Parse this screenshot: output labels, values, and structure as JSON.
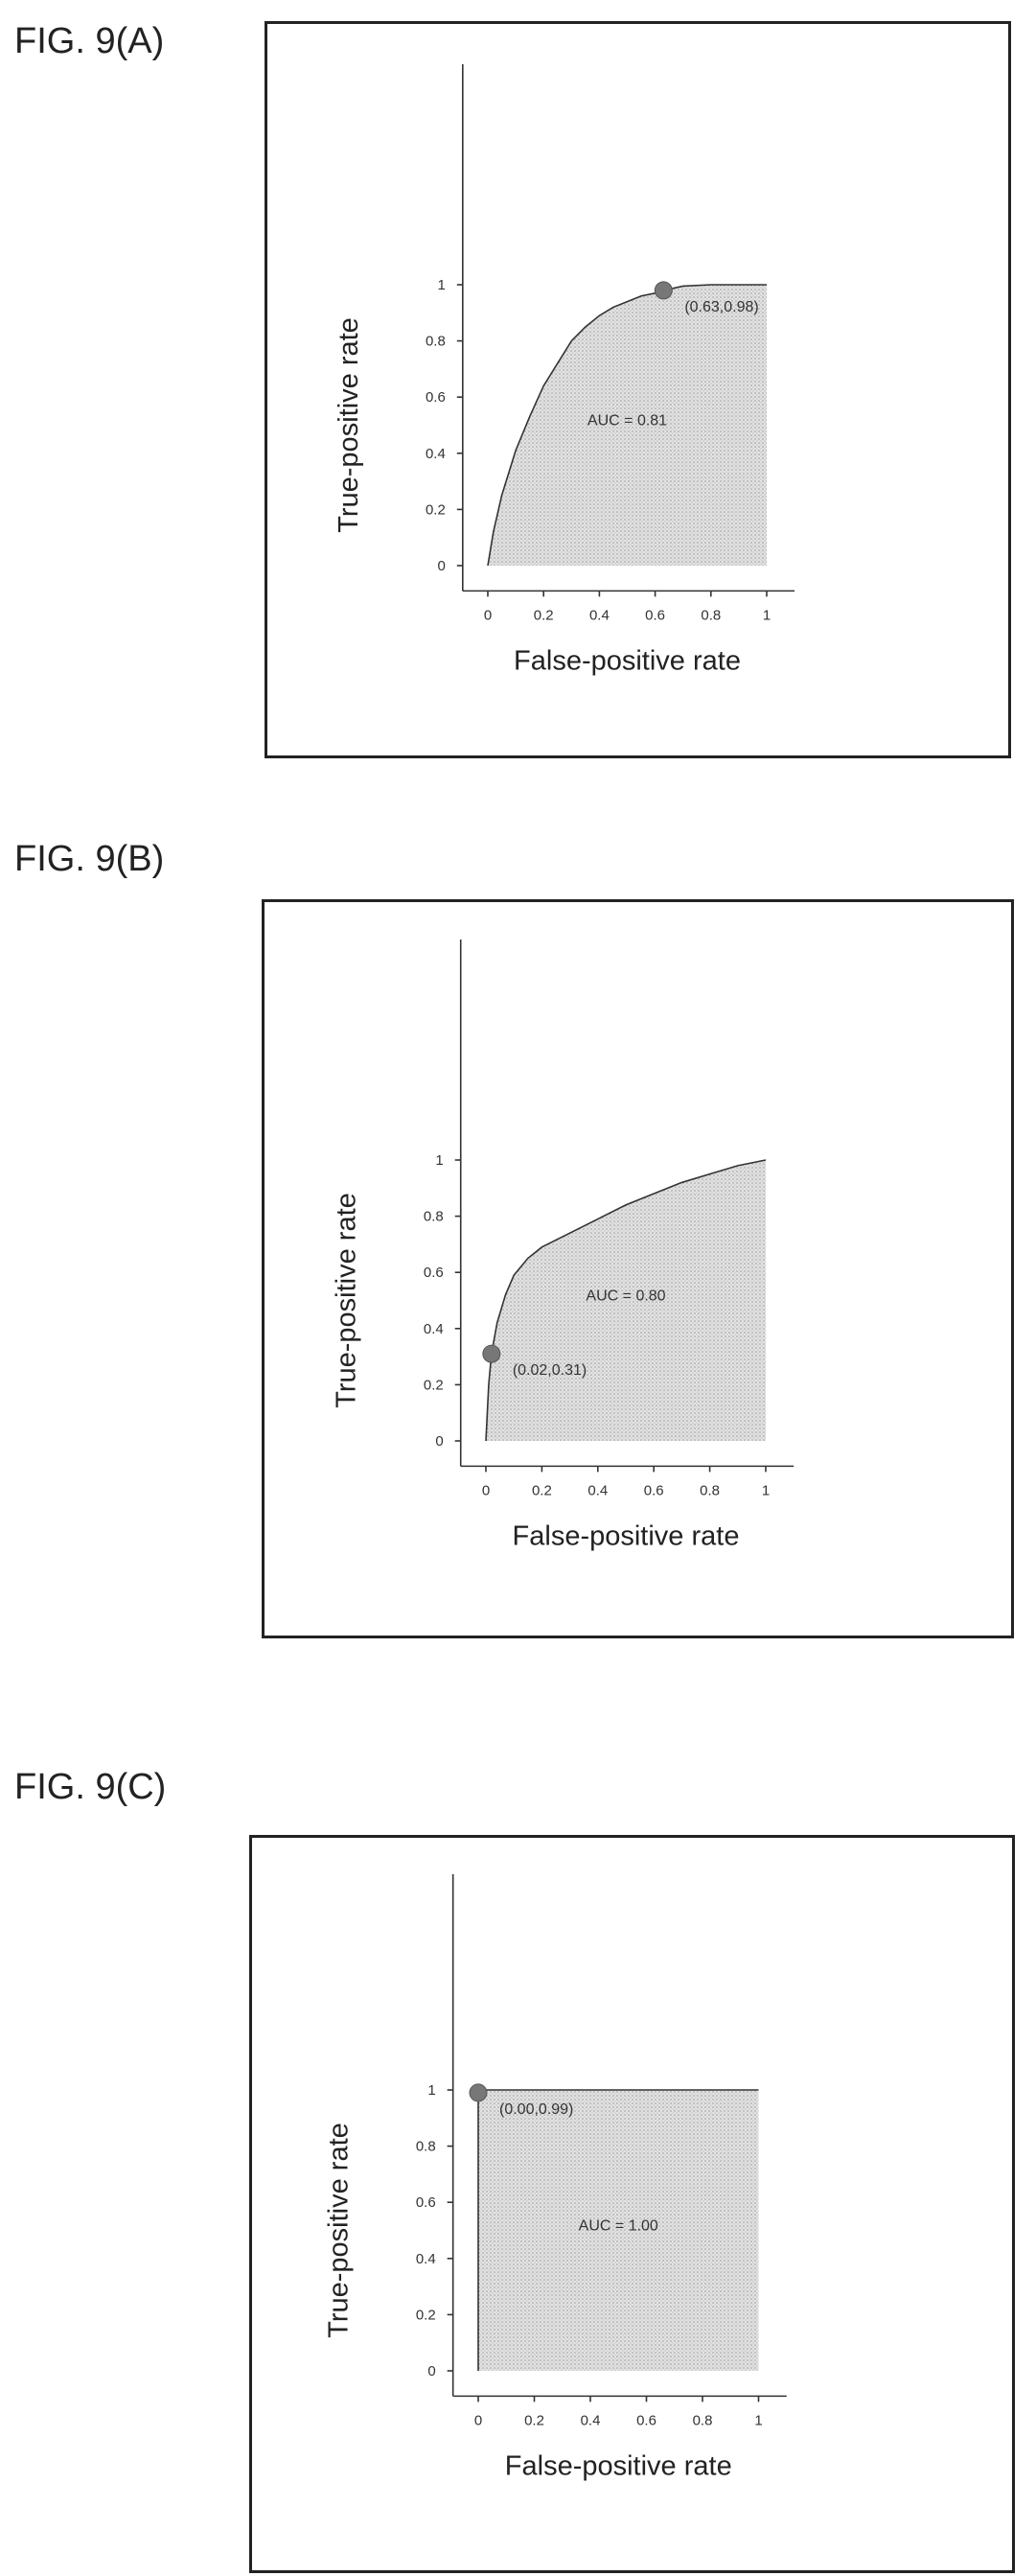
{
  "figures": {
    "a": {
      "label": "FIG. 9(A)"
    },
    "b": {
      "label": "FIG. 9(B)"
    },
    "c": {
      "label": "FIG. 9(C)"
    }
  },
  "chart_data": [
    {
      "type": "area",
      "xlabel": "False-positive rate",
      "ylabel": "True-positive rate",
      "xlim": [
        0,
        1
      ],
      "ylim": [
        0,
        1
      ],
      "x_ticks": [
        "0",
        "0.2",
        "0.4",
        "0.6",
        "0.8",
        "1"
      ],
      "y_ticks": [
        "0",
        "0.2",
        "0.4",
        "0.6",
        "0.8",
        "1"
      ],
      "x": [
        0,
        0.02,
        0.05,
        0.1,
        0.15,
        0.2,
        0.25,
        0.3,
        0.35,
        0.4,
        0.45,
        0.5,
        0.55,
        0.6,
        0.63,
        0.7,
        0.8,
        0.9,
        1.0
      ],
      "y": [
        0,
        0.12,
        0.25,
        0.41,
        0.53,
        0.64,
        0.72,
        0.8,
        0.85,
        0.89,
        0.92,
        0.94,
        0.96,
        0.97,
        0.98,
        0.995,
        1.0,
        1.0,
        1.0
      ],
      "annotation": "AUC = 0.81",
      "highlight_point": {
        "x": 0.63,
        "y": 0.98,
        "label": "(0.63,0.98)"
      },
      "grid": false
    },
    {
      "type": "area",
      "xlabel": "False-positive rate",
      "ylabel": "True-positive rate",
      "xlim": [
        0,
        1
      ],
      "ylim": [
        0,
        1
      ],
      "x_ticks": [
        "0",
        "0.2",
        "0.4",
        "0.6",
        "0.8",
        "1"
      ],
      "y_ticks": [
        "0",
        "0.2",
        "0.4",
        "0.6",
        "0.8",
        "1"
      ],
      "x": [
        0,
        0.005,
        0.01,
        0.02,
        0.04,
        0.07,
        0.1,
        0.15,
        0.2,
        0.3,
        0.4,
        0.5,
        0.6,
        0.7,
        0.8,
        0.9,
        1.0
      ],
      "y": [
        0,
        0.1,
        0.2,
        0.31,
        0.42,
        0.52,
        0.59,
        0.65,
        0.69,
        0.74,
        0.79,
        0.84,
        0.88,
        0.92,
        0.95,
        0.98,
        1.0
      ],
      "annotation": "AUC = 0.80",
      "highlight_point": {
        "x": 0.02,
        "y": 0.31,
        "label": "(0.02,0.31)"
      },
      "grid": false
    },
    {
      "type": "area",
      "xlabel": "False-positive rate",
      "ylabel": "True-positive rate",
      "xlim": [
        0,
        1
      ],
      "ylim": [
        0,
        1
      ],
      "x_ticks": [
        "0",
        "0.2",
        "0.4",
        "0.6",
        "0.8",
        "1"
      ],
      "y_ticks": [
        "0",
        "0.2",
        "0.4",
        "0.6",
        "0.8",
        "1"
      ],
      "x": [
        0,
        0,
        1
      ],
      "y": [
        0,
        1,
        1
      ],
      "annotation": "AUC = 1.00",
      "highlight_point": {
        "x": 0.0,
        "y": 0.99,
        "label": "(0.00,0.99)"
      },
      "grid": false
    }
  ]
}
